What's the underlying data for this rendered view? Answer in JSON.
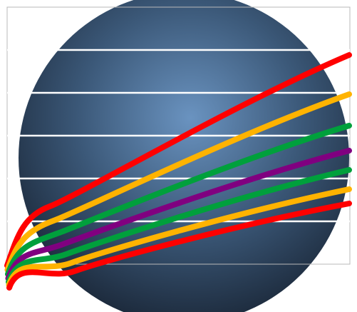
{
  "image": {
    "kind": "logo-illustration",
    "background_color": "#ffffff",
    "sphere": {
      "highlight_color": "#6a93c0",
      "mid_color": "#3b5878",
      "edge_color": "#1d2b3d"
    },
    "bands": {
      "count": 6,
      "divider_color": "#ffffff",
      "band_outline_color": "#b8b8b8"
    },
    "curves": [
      {
        "color": "#ff0000"
      },
      {
        "color": "#ffb300"
      },
      {
        "color": "#00a03c"
      },
      {
        "color": "#800080"
      },
      {
        "color": "#00a03c"
      },
      {
        "color": "#ffb300"
      },
      {
        "color": "#ff0000"
      }
    ]
  }
}
